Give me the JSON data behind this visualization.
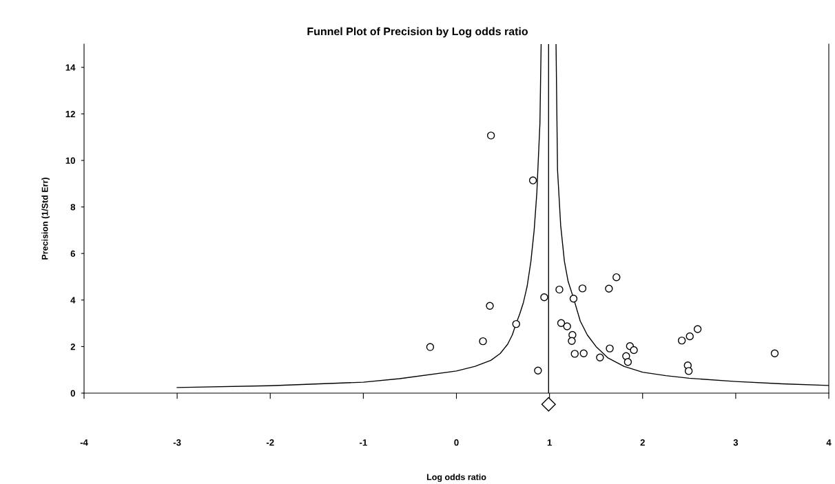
{
  "chart_data": {
    "type": "scatter",
    "title": "Funnel Plot of Precision by Log odds ratio",
    "xlabel": "Log odds ratio",
    "ylabel": "Precision (1/Std Err)",
    "xlim": [
      -4,
      4
    ],
    "xticks": [
      -4,
      -3,
      -2,
      -1,
      0,
      1,
      2,
      3,
      4
    ],
    "ylim": [
      0,
      15
    ],
    "yticks": [
      0,
      2,
      4,
      6,
      8,
      10,
      12,
      14
    ],
    "grid": false,
    "legend": false,
    "ref_lines": [
      {
        "axis": "x",
        "value": 0.99,
        "color": "#000000"
      }
    ],
    "series": [
      {
        "marker": "circle",
        "color": "#000000",
        "x": [
          0.371,
          0.822,
          0.359,
          0.642,
          0.285,
          -0.282,
          0.876,
          0.943,
          1.106,
          1.258,
          1.125,
          1.189,
          1.246,
          1.239,
          1.271,
          1.354,
          1.638,
          1.719,
          1.367,
          1.542,
          1.647,
          1.823,
          1.842,
          1.864,
          1.906,
          2.421,
          2.507,
          2.591,
          2.485,
          2.495,
          3.419
        ],
        "values": [
          11.07,
          9.14,
          3.75,
          2.97,
          2.23,
          1.98,
          0.97,
          4.12,
          4.45,
          4.06,
          3.01,
          2.87,
          2.5,
          2.24,
          1.69,
          4.5,
          4.49,
          4.98,
          1.71,
          1.53,
          1.92,
          1.59,
          1.34,
          2.02,
          1.85,
          2.26,
          2.44,
          2.75,
          1.19,
          0.95,
          1.71
        ]
      },
      {
        "type": "line",
        "color": "#000000",
        "x": [
          -3,
          -2,
          -1,
          -0.61,
          0,
          0.2,
          0.37,
          0.47,
          0.55,
          0.6,
          0.64,
          0.68,
          0.72,
          0.76,
          0.8,
          0.835,
          0.864,
          0.897,
          0.91
        ],
        "values": [
          0.24,
          0.32,
          0.47,
          0.62,
          0.95,
          1.15,
          1.41,
          1.7,
          2.1,
          2.5,
          2.97,
          3.4,
          3.9,
          4.6,
          5.66,
          7.0,
          8.62,
          11.6,
          15
        ]
      },
      {
        "type": "line",
        "color": "#000000",
        "x": [
          1.07,
          1.086,
          1.12,
          1.16,
          1.2,
          1.258,
          1.33,
          1.406,
          1.5,
          1.628,
          1.8,
          2.0,
          2.25,
          2.5,
          3.0,
          3.5,
          4.0
        ],
        "values": [
          15,
          9.6,
          7.2,
          5.66,
          4.8,
          4.08,
          3.1,
          2.5,
          2.0,
          1.51,
          1.15,
          0.9,
          0.75,
          0.64,
          0.5,
          0.4,
          0.33
        ]
      }
    ]
  }
}
